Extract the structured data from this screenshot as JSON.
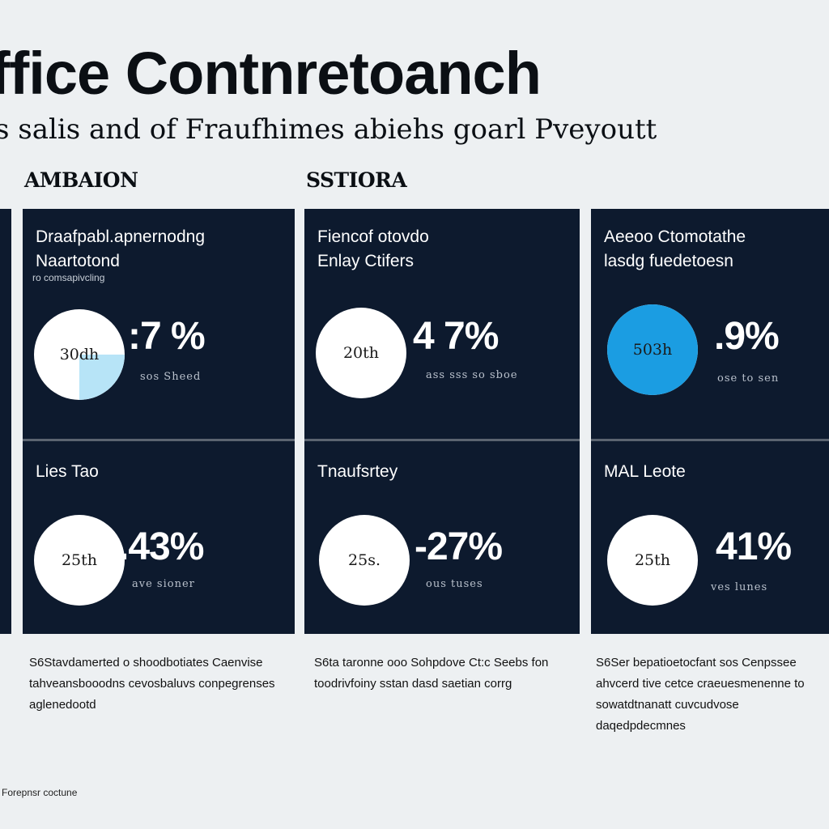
{
  "header": {
    "title": "ffice Contnretoanch",
    "subtitle": "s salis and of Fraufhimes abiehs goarl Pveyoutt"
  },
  "sections": [
    "AMBAION",
    "SSTIORA"
  ],
  "columns": [
    {
      "panels": [
        {
          "title": "Draafpabl.apnernodng\nNaartotond",
          "note": "ro comsapivcling",
          "gauge_label": "30dh",
          "gauge_fill": 0.25,
          "gauge_color": "#b7e4f7",
          "value": ":7 %",
          "value_caption": "sos Sheed"
        },
        {
          "title": "Lies Tao",
          "note": "",
          "gauge_label": "25th",
          "gauge_fill": 0,
          "gauge_color": "#ffffff",
          "value": ".43%",
          "value_caption": "ave sioner"
        }
      ],
      "footnote": "S6Stavdamerted o shoodbotiates Caenvise tahveansbooodns cevosbaluvs conpegrenses aglenedootd"
    },
    {
      "panels": [
        {
          "title": "Fiencof otovdo\nEnlay Ctifers",
          "note": "",
          "gauge_label": "20th",
          "gauge_fill": 0,
          "gauge_color": "#ffffff",
          "value": "4 7%",
          "value_caption": "ass sss so sboe"
        },
        {
          "title": "Tnaufsrtey",
          "note": "",
          "gauge_label": "25s.",
          "gauge_fill": 0,
          "gauge_color": "#ffffff",
          "value": "-27%",
          "value_caption": "ous tuses"
        }
      ],
      "footnote": "S6ta taronne ooo Sohpdove Ct:c Seebs fon toodrivfoiny sstan dasd saetian corrg"
    },
    {
      "panels": [
        {
          "title": "Aeeoo Ctomotathe\nlasdg fuedetoesn",
          "note": "",
          "gauge_label": "503h",
          "gauge_fill": 1,
          "gauge_color": "#1b9de2",
          "value": ".9%",
          "value_caption": "ose to sen"
        },
        {
          "title": "MAL Leote",
          "note": "",
          "gauge_label": "25th",
          "gauge_fill": 0,
          "gauge_color": "#ffffff",
          "value": "41%",
          "value_caption": "ves lunes"
        }
      ],
      "footnote": "S6Ser bepatioetocfant sos Cenpssee ahvcerd tive cetce craeuesmenenne to sowatdtnanatt cuvcudvose daqedpdecmnes"
    }
  ],
  "source": "Forepnsr coctune",
  "chart_data": {
    "type": "table",
    "columns": [
      {
        "section": "AMBAION",
        "metrics": [
          {
            "label": "Draafpabl.apnernodng Naartotond",
            "center": "30dh",
            "value": ":7 %"
          },
          {
            "label": "Lies Tao",
            "center": "25th",
            "value": ".43%"
          }
        ]
      },
      {
        "section": "SSTIORA",
        "metrics": [
          {
            "label": "Fiencof otovdo Enlay Ctifers",
            "center": "20th",
            "value": "4 7%"
          },
          {
            "label": "Tnaufsrtey",
            "center": "25s.",
            "value": "-27%"
          }
        ]
      },
      {
        "section": "",
        "metrics": [
          {
            "label": "Aeeoo Ctomotathe lasdg fuedetoesn",
            "center": "503h",
            "value": ".9%"
          },
          {
            "label": "MAL Leote",
            "center": "25th",
            "value": "41%"
          }
        ]
      }
    ]
  }
}
